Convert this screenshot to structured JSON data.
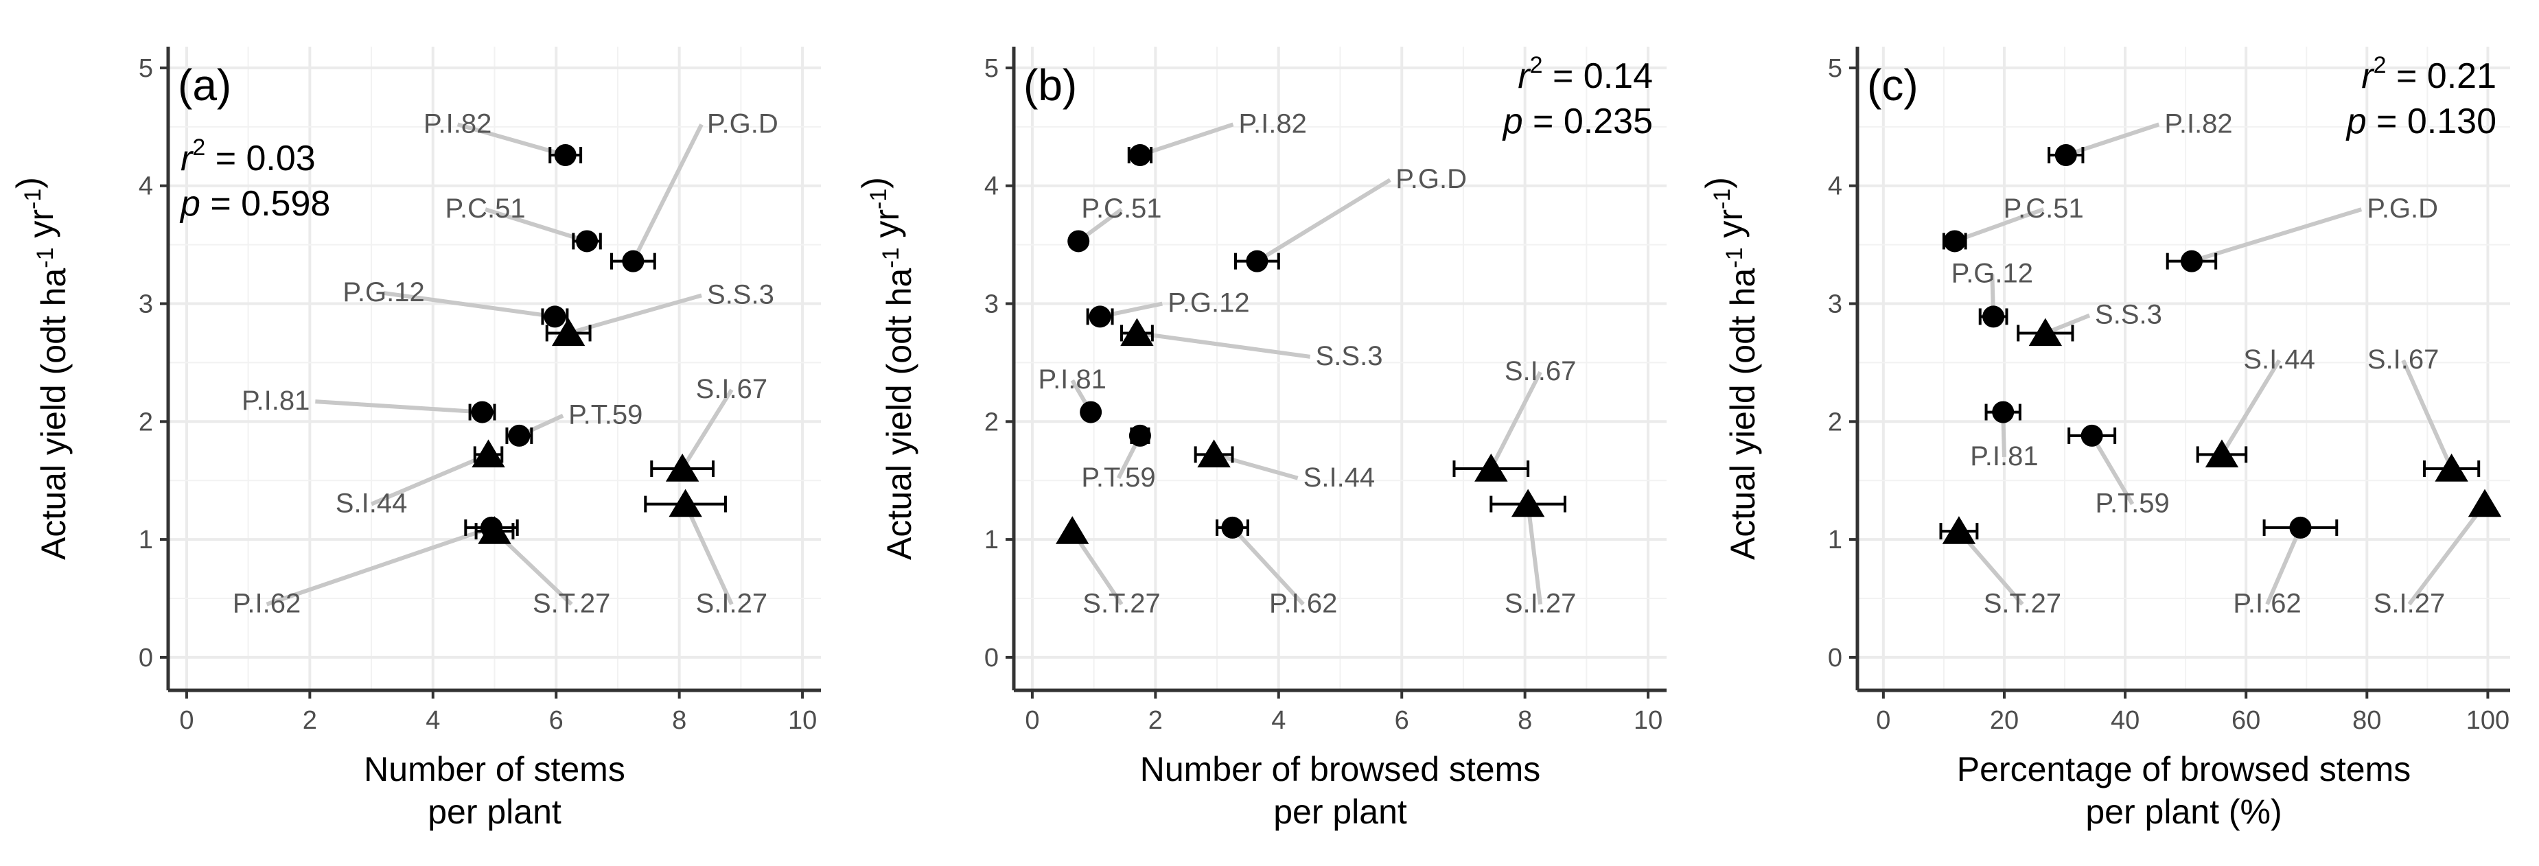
{
  "chart_data": [
    {
      "type": "scatter",
      "panel_label": "(a)",
      "xlabel_lines": [
        "Number of stems",
        "per plant"
      ],
      "ylabel": "Actual yield (odt ha-1 yr-1)",
      "xlim": [
        -0.3,
        10.3
      ],
      "ylim": [
        -0.28,
        5.18
      ],
      "xticks": [
        "0",
        "2",
        "4",
        "6",
        "8",
        "10"
      ],
      "yticks": [
        "0",
        "1",
        "2",
        "3",
        "4",
        "5"
      ],
      "grid": true,
      "stats": {
        "r2": "0.03",
        "p": "0.598",
        "position": "top-left"
      },
      "points": [
        {
          "label": "P.I.82",
          "marker": "circle",
          "x": 6.15,
          "y": 4.26,
          "xerr": 0.25,
          "label_x": 4.4,
          "label_y": 4.45,
          "label_anchor": "middle"
        },
        {
          "label": "P.G.D",
          "marker": "circle",
          "x": 7.25,
          "y": 3.36,
          "xerr": 0.35,
          "label_x": 8.45,
          "label_y": 4.45,
          "label_anchor": "start"
        },
        {
          "label": "P.C.51",
          "marker": "circle",
          "x": 6.5,
          "y": 3.53,
          "xerr": 0.22,
          "label_x": 4.85,
          "label_y": 3.73,
          "label_anchor": "middle"
        },
        {
          "label": "P.G.12",
          "marker": "circle",
          "x": 5.98,
          "y": 2.89,
          "xerr": 0.2,
          "label_x": 3.2,
          "label_y": 3.02,
          "label_anchor": "middle"
        },
        {
          "label": "S.S.3",
          "marker": "triangle",
          "x": 6.2,
          "y": 2.75,
          "xerr": 0.35,
          "label_x": 8.45,
          "label_y": 3.0,
          "label_anchor": "start"
        },
        {
          "label": "P.I.81",
          "marker": "circle",
          "x": 4.8,
          "y": 2.08,
          "xerr": 0.2,
          "label_x": 2.0,
          "label_y": 2.1,
          "label_anchor": "end"
        },
        {
          "label": "P.T.59",
          "marker": "circle",
          "x": 5.4,
          "y": 1.88,
          "xerr": 0.2,
          "label_x": 6.2,
          "label_y": 1.98,
          "label_anchor": "start"
        },
        {
          "label": "S.I.67",
          "marker": "triangle",
          "x": 8.05,
          "y": 1.6,
          "xerr": 0.5,
          "label_x": 8.85,
          "label_y": 2.2,
          "label_anchor": "middle"
        },
        {
          "label": "S.I.44",
          "marker": "triangle",
          "x": 4.9,
          "y": 1.72,
          "xerr": 0.22,
          "label_x": 3.0,
          "label_y": 1.23,
          "label_anchor": "middle"
        },
        {
          "label": "S.I.27",
          "marker": "triangle",
          "x": 8.1,
          "y": 1.3,
          "xerr": 0.65,
          "label_x": 8.85,
          "label_y": 0.38,
          "label_anchor": "middle"
        },
        {
          "label": "P.I.62",
          "marker": "circle",
          "x": 4.95,
          "y": 1.1,
          "xerr": 0.42,
          "label_x": 1.3,
          "label_y": 0.38,
          "label_anchor": "middle"
        },
        {
          "label": "S.T.27",
          "marker": "triangle",
          "x": 5.0,
          "y": 1.07,
          "xerr": 0.3,
          "label_x": 6.25,
          "label_y": 0.38,
          "label_anchor": "middle"
        }
      ]
    },
    {
      "type": "scatter",
      "panel_label": "(b)",
      "xlabel_lines": [
        "Number of browsed stems",
        "per plant"
      ],
      "ylabel": "Actual yield (odt ha-1 yr-1)",
      "xlim": [
        -0.3,
        10.3
      ],
      "ylim": [
        -0.28,
        5.18
      ],
      "xticks": [
        "0",
        "2",
        "4",
        "6",
        "8",
        "10"
      ],
      "yticks": [
        "0",
        "1",
        "2",
        "3",
        "4",
        "5"
      ],
      "grid": true,
      "stats": {
        "r2": "0.14",
        "p": "0.235",
        "position": "top-right"
      },
      "points": [
        {
          "label": "P.I.82",
          "marker": "circle",
          "x": 1.75,
          "y": 4.26,
          "xerr": 0.18,
          "label_x": 3.35,
          "label_y": 4.45,
          "label_anchor": "start"
        },
        {
          "label": "P.G.D",
          "marker": "circle",
          "x": 3.65,
          "y": 3.36,
          "xerr": 0.35,
          "label_x": 5.9,
          "label_y": 3.98,
          "label_anchor": "start"
        },
        {
          "label": "P.C.51",
          "marker": "circle",
          "x": 0.75,
          "y": 3.53,
          "xerr": 0.0,
          "label_x": 1.45,
          "label_y": 3.73,
          "label_anchor": "middle"
        },
        {
          "label": "P.G.12",
          "marker": "circle",
          "x": 1.1,
          "y": 2.89,
          "xerr": 0.2,
          "label_x": 2.2,
          "label_y": 2.93,
          "label_anchor": "start"
        },
        {
          "label": "S.S.3",
          "marker": "triangle",
          "x": 1.7,
          "y": 2.75,
          "xerr": 0.25,
          "label_x": 4.6,
          "label_y": 2.48,
          "label_anchor": "start"
        },
        {
          "label": "P.I.81",
          "marker": "circle",
          "x": 0.95,
          "y": 2.08,
          "xerr": 0.0,
          "label_x": 0.65,
          "label_y": 2.28,
          "label_anchor": "middle"
        },
        {
          "label": "P.T.59",
          "marker": "circle",
          "x": 1.75,
          "y": 1.88,
          "xerr": 0.14,
          "label_x": 1.4,
          "label_y": 1.45,
          "label_anchor": "middle"
        },
        {
          "label": "S.I.44",
          "marker": "triangle",
          "x": 2.95,
          "y": 1.72,
          "xerr": 0.3,
          "label_x": 4.4,
          "label_y": 1.45,
          "label_anchor": "start"
        },
        {
          "label": "S.I.67",
          "marker": "triangle",
          "x": 7.45,
          "y": 1.6,
          "xerr": 0.6,
          "label_x": 8.25,
          "label_y": 2.35,
          "label_anchor": "middle"
        },
        {
          "label": "S.I.27",
          "marker": "triangle",
          "x": 8.05,
          "y": 1.3,
          "xerr": 0.6,
          "label_x": 8.25,
          "label_y": 0.38,
          "label_anchor": "middle"
        },
        {
          "label": "P.I.62",
          "marker": "circle",
          "x": 3.25,
          "y": 1.1,
          "xerr": 0.25,
          "label_x": 4.4,
          "label_y": 0.38,
          "label_anchor": "middle"
        },
        {
          "label": "S.T.27",
          "marker": "triangle",
          "x": 0.65,
          "y": 1.07,
          "xerr": 0.0,
          "label_x": 1.45,
          "label_y": 0.38,
          "label_anchor": "middle"
        }
      ]
    },
    {
      "type": "scatter",
      "panel_label": "(c)",
      "xlabel_lines": [
        "Percentage of browsed stems",
        "per plant (%)"
      ],
      "ylabel": "Actual yield (odt ha-1 yr-1)",
      "xlim": [
        -4.3,
        103.7
      ],
      "ylim": [
        -0.28,
        5.18
      ],
      "xticks": [
        "0",
        "20",
        "40",
        "60",
        "80",
        "100"
      ],
      "yticks": [
        "0",
        "1",
        "2",
        "3",
        "4",
        "5"
      ],
      "grid": true,
      "stats": {
        "r2": "0.21",
        "p": "0.130",
        "position": "top-right"
      },
      "points": [
        {
          "label": "P.I.82",
          "marker": "circle",
          "x": 30.2,
          "y": 4.26,
          "xerr": 2.8,
          "label_x": 46.5,
          "label_y": 4.45,
          "label_anchor": "start"
        },
        {
          "label": "P.C.51",
          "marker": "circle",
          "x": 11.8,
          "y": 3.53,
          "xerr": 1.8,
          "label_x": 26.5,
          "label_y": 3.73,
          "label_anchor": "middle"
        },
        {
          "label": "P.G.D",
          "marker": "circle",
          "x": 51.0,
          "y": 3.36,
          "xerr": 4.0,
          "label_x": 80.0,
          "label_y": 3.73,
          "label_anchor": "start"
        },
        {
          "label": "P.G.12",
          "marker": "circle",
          "x": 18.2,
          "y": 2.89,
          "xerr": 2.2,
          "label_x": 18.0,
          "label_y": 3.18,
          "label_anchor": "middle"
        },
        {
          "label": "S.S.3",
          "marker": "triangle",
          "x": 26.8,
          "y": 2.75,
          "xerr": 4.5,
          "label_x": 35.0,
          "label_y": 2.83,
          "label_anchor": "start"
        },
        {
          "label": "P.I.81",
          "marker": "circle",
          "x": 19.8,
          "y": 2.08,
          "xerr": 2.8,
          "label_x": 20.0,
          "label_y": 1.63,
          "label_anchor": "middle"
        },
        {
          "label": "P.T.59",
          "marker": "circle",
          "x": 34.5,
          "y": 1.88,
          "xerr": 3.8,
          "label_x": 41.2,
          "label_y": 1.23,
          "label_anchor": "middle"
        },
        {
          "label": "S.I.44",
          "marker": "triangle",
          "x": 56.0,
          "y": 1.72,
          "xerr": 4.0,
          "label_x": 65.5,
          "label_y": 2.45,
          "label_anchor": "middle"
        },
        {
          "label": "S.I.67",
          "marker": "triangle",
          "x": 94.0,
          "y": 1.6,
          "xerr": 4.5,
          "label_x": 86.0,
          "label_y": 2.45,
          "label_anchor": "middle"
        },
        {
          "label": "S.I.27",
          "marker": "triangle",
          "x": 99.5,
          "y": 1.3,
          "xerr": 0.0,
          "label_x": 87.0,
          "label_y": 0.38,
          "label_anchor": "middle"
        },
        {
          "label": "P.I.62",
          "marker": "circle",
          "x": 69.0,
          "y": 1.1,
          "xerr": 6.0,
          "label_x": 63.5,
          "label_y": 0.38,
          "label_anchor": "middle"
        },
        {
          "label": "S.T.27",
          "marker": "triangle",
          "x": 12.5,
          "y": 1.07,
          "xerr": 3.0,
          "label_x": 23.0,
          "label_y": 0.38,
          "label_anchor": "middle"
        }
      ]
    }
  ]
}
